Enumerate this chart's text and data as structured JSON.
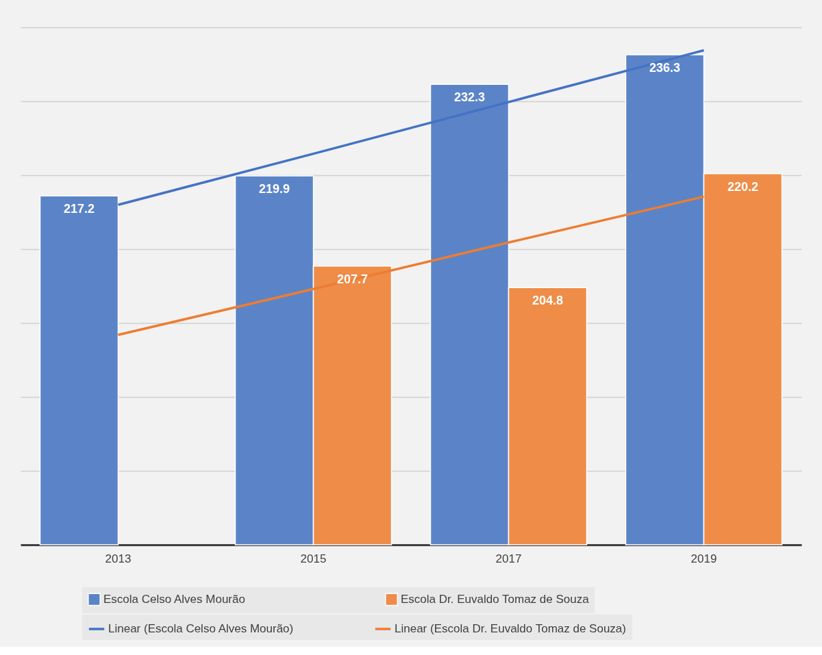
{
  "chart_data": {
    "type": "bar",
    "categories": [
      "2013",
      "2015",
      "2017",
      "2019"
    ],
    "series": [
      {
        "name": "Escola Celso Alves Mourão",
        "color": "#5b84c8",
        "values": [
          217.2,
          219.9,
          232.3,
          236.3
        ]
      },
      {
        "name": "Escola Dr. Euvaldo Tomaz de Souza",
        "color": "#ee8c48",
        "values": [
          null,
          207.7,
          204.8,
          220.2
        ]
      },
      {
        "name": "Linear (Escola Celso Alves Mourão)",
        "type": "line",
        "color": "#4472c4",
        "values": [
          216.0,
          222.9,
          229.9,
          236.9
        ],
        "value_labels": [
          null,
          null,
          null,
          null
        ]
      },
      {
        "name": "Linear (Escola Dr. Euvaldo Tomaz de Souza)",
        "type": "line",
        "color": "#ed7d31",
        "values": [
          198.4,
          204.6,
          210.9,
          217.1
        ],
        "value_labels": [
          null,
          null,
          null,
          null
        ]
      }
    ],
    "ylim": [
      170,
      240
    ],
    "yticks": [
      {
        "value": 170,
        "label": null
      },
      {
        "value": 180,
        "label": null
      },
      {
        "value": 190,
        "label": null
      },
      {
        "value": 200,
        "label": null
      },
      {
        "value": 210,
        "label": null
      },
      {
        "value": 220,
        "label": null
      },
      {
        "value": 230,
        "label": null
      },
      {
        "value": 240,
        "label": null
      }
    ],
    "tick_labels": "x",
    "grid": "y",
    "legend": "bottom",
    "data_labels": true
  }
}
